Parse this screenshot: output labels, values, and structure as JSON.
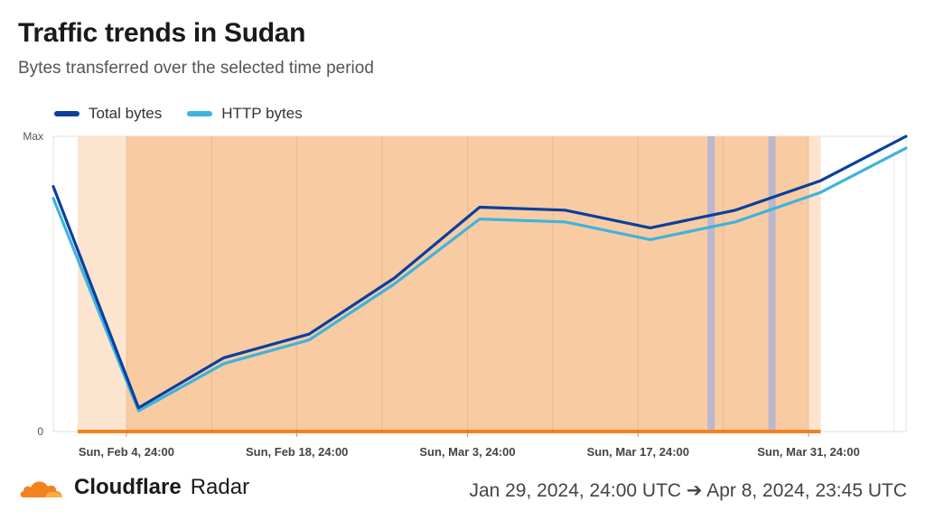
{
  "header": {
    "title": "Traffic trends in Sudan",
    "subtitle": "Bytes transferred over the selected time period"
  },
  "legend": [
    {
      "label": "Total bytes",
      "color": "#0a3f9c"
    },
    {
      "label": "HTTP bytes",
      "color": "#3fb3dc"
    }
  ],
  "footer": {
    "brand_name": "Cloudflare",
    "brand_product": "Radar",
    "date_range": "Jan 29, 2024, 24:00 UTC ➔ Apr 8, 2024, 23:45 UTC"
  },
  "chart_data": {
    "type": "line",
    "x_range": [
      "2024-01-30",
      "2024-04-09"
    ],
    "y_tick_labels": [
      {
        "label": "0",
        "value": 0
      },
      {
        "label": "Max",
        "value": 1
      }
    ],
    "x_tick_labels": [
      {
        "label": "Sun, Feb 4, 24:00",
        "date": "2024-02-05"
      },
      {
        "label": "Sun, Feb 18, 24:00",
        "date": "2024-02-19"
      },
      {
        "label": "Sun, Mar 3, 24:00",
        "date": "2024-03-04"
      },
      {
        "label": "Sun, Mar 17, 24:00",
        "date": "2024-03-18"
      },
      {
        "label": "Sun, Mar 31, 24:00",
        "date": "2024-04-01"
      }
    ],
    "series": [
      {
        "name": "Total bytes",
        "color": "#0a3f9c",
        "points": [
          [
            "2024-01-30",
            0.83
          ],
          [
            "2024-02-06",
            0.08
          ],
          [
            "2024-02-13",
            0.25
          ],
          [
            "2024-02-20",
            0.33
          ],
          [
            "2024-02-27",
            0.52
          ],
          [
            "2024-03-05",
            0.76
          ],
          [
            "2024-03-12",
            0.75
          ],
          [
            "2024-03-19",
            0.69
          ],
          [
            "2024-03-26",
            0.75
          ],
          [
            "2024-04-02",
            0.85
          ],
          [
            "2024-04-09",
            1.0
          ]
        ]
      },
      {
        "name": "HTTP bytes",
        "color": "#3fb3dc",
        "points": [
          [
            "2024-01-30",
            0.79
          ],
          [
            "2024-02-06",
            0.07
          ],
          [
            "2024-02-13",
            0.23
          ],
          [
            "2024-02-20",
            0.31
          ],
          [
            "2024-02-27",
            0.5
          ],
          [
            "2024-03-05",
            0.72
          ],
          [
            "2024-03-12",
            0.71
          ],
          [
            "2024-03-19",
            0.65
          ],
          [
            "2024-03-26",
            0.71
          ],
          [
            "2024-04-02",
            0.81
          ],
          [
            "2024-04-09",
            0.96
          ]
        ]
      }
    ],
    "annotation_ranges": [
      {
        "start": "2024-02-01",
        "end": "2024-04-02",
        "color": "#fde3cc"
      },
      {
        "start": "2024-02-05",
        "end": "2024-04-01",
        "color": "#f9c9a0"
      },
      {
        "start": "2024-03-24",
        "end": "2024-03-24",
        "color": "#b7b6cf"
      },
      {
        "start": "2024-03-29",
        "end": "2024-03-29",
        "color": "#b7b6cf"
      }
    ],
    "grid": true
  }
}
